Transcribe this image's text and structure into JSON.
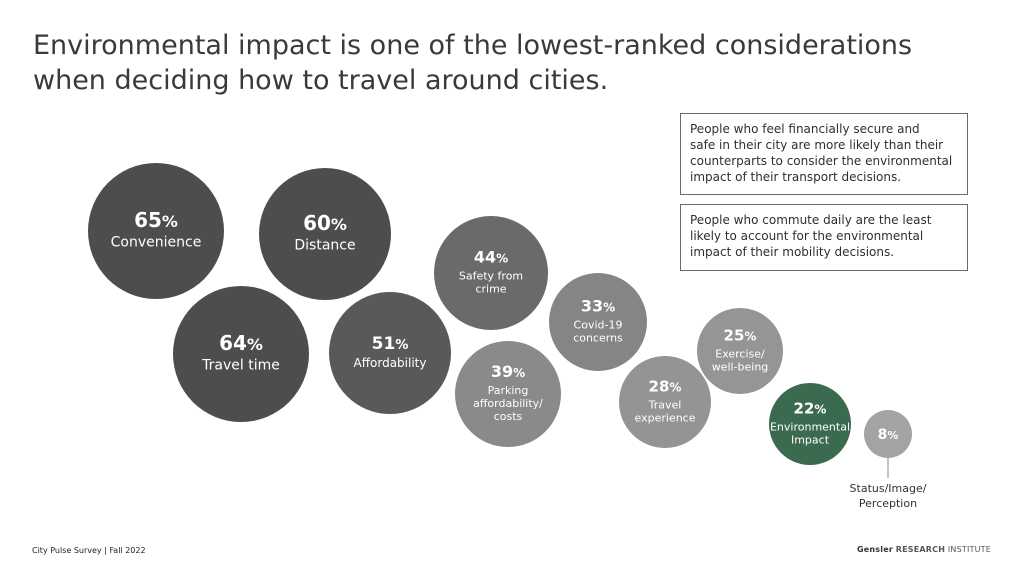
{
  "header": {
    "title_line1": "Environmental impact is one of the lowest-ranked considerations",
    "title_line2": "when deciding how to travel around cities."
  },
  "callouts": [
    {
      "lines": [
        "People who feel financially secure and",
        "safe in their city are more likely than their",
        "counterparts to consider the environmental",
        "impact of their transport decisions."
      ]
    },
    {
      "lines": [
        "People who commute daily are the least",
        "likely to account for the environmental",
        "impact of their mobility decisions."
      ]
    }
  ],
  "chart_data": {
    "type": "bubble",
    "unit": "%",
    "items": [
      {
        "key": "convenience",
        "value": 65,
        "label_lines": [
          "Convenience"
        ],
        "color": "#4d4d4f"
      },
      {
        "key": "distance",
        "value": 60,
        "label_lines": [
          "Distance"
        ],
        "color": "#4d4d4f"
      },
      {
        "key": "travel-time",
        "value": 64,
        "label_lines": [
          "Travel time"
        ],
        "color": "#4d4d4f"
      },
      {
        "key": "affordability",
        "value": 51,
        "label_lines": [
          "Affordability"
        ],
        "color": "#59595b"
      },
      {
        "key": "safety-from-crime",
        "value": 44,
        "label_lines": [
          "Safety from",
          "crime"
        ],
        "color": "#6a6a6c"
      },
      {
        "key": "parking-costs",
        "value": 39,
        "label_lines": [
          "Parking",
          "affordability/",
          "costs"
        ],
        "color": "#8a8a8c"
      },
      {
        "key": "covid-19-concerns",
        "value": 33,
        "label_lines": [
          "Covid-19",
          "concerns"
        ],
        "color": "#858587"
      },
      {
        "key": "travel-experience",
        "value": 28,
        "label_lines": [
          "Travel",
          "experience"
        ],
        "color": "#949496"
      },
      {
        "key": "exercise-well-being",
        "value": 25,
        "label_lines": [
          "Exercise/",
          "well-being"
        ],
        "color": "#959597"
      },
      {
        "key": "environmental-impact",
        "value": 22,
        "label_lines": [
          "Environmental",
          "Impact"
        ],
        "color": "#3a6b4f"
      },
      {
        "key": "status-image-perception",
        "value": 8,
        "label_lines": [
          "Status/Image/",
          "Perception"
        ],
        "color": "#a4a4a6",
        "label_outside": true
      }
    ]
  },
  "footer": {
    "source": "City Pulse Survey | Fall 2022",
    "brand": "Gensler",
    "dept": "RESEARCH",
    "institute": "INSTITUTE"
  }
}
